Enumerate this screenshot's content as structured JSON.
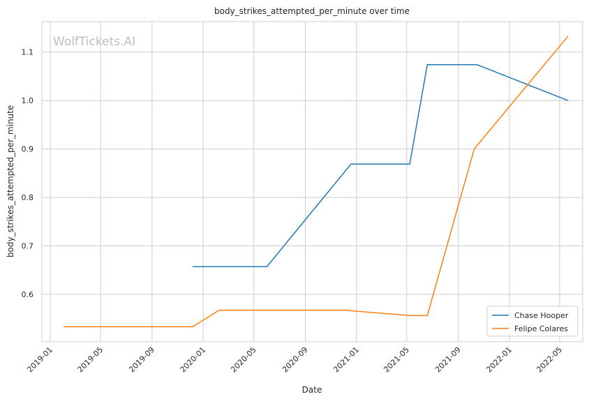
{
  "chart_data": {
    "type": "line",
    "title": "body_strikes_attempted_per_minute over time",
    "xlabel": "Date",
    "ylabel": "body_strikes_attempted_per_minute",
    "watermark": "WolfTickets.AI",
    "x_ticks": [
      "2019-01",
      "2019-05",
      "2019-09",
      "2020-01",
      "2020-05",
      "2020-09",
      "2021-01",
      "2021-05",
      "2021-09",
      "2022-01",
      "2022-05"
    ],
    "y_ticks": [
      "0.6",
      "0.7",
      "0.8",
      "0.9",
      "1.0",
      "1.1"
    ],
    "xlim": [
      "2018-12-12",
      "2022-06-25"
    ],
    "ylim": [
      0.502,
      1.163
    ],
    "grid": true,
    "legend_position": "bottom-right",
    "series": [
      {
        "name": "Chase Hooper",
        "color": "#1f77b4",
        "points": [
          {
            "x": "2019-12-07",
            "y": 0.657
          },
          {
            "x": "2020-06-01",
            "y": 0.657
          },
          {
            "x": "2020-12-19",
            "y": 0.869
          },
          {
            "x": "2021-05-08",
            "y": 0.869
          },
          {
            "x": "2021-06-19",
            "y": 1.074
          },
          {
            "x": "2021-10-16",
            "y": 1.074
          },
          {
            "x": "2022-05-21",
            "y": 1.0
          }
        ]
      },
      {
        "name": "Felipe Colares",
        "color": "#ff7f0e",
        "points": [
          {
            "x": "2019-02-02",
            "y": 0.533
          },
          {
            "x": "2019-12-07",
            "y": 0.533
          },
          {
            "x": "2020-02-08",
            "y": 0.567
          },
          {
            "x": "2020-12-05",
            "y": 0.567
          },
          {
            "x": "2021-05-08",
            "y": 0.556
          },
          {
            "x": "2021-06-19",
            "y": 0.556
          },
          {
            "x": "2021-10-09",
            "y": 0.9
          },
          {
            "x": "2022-05-21",
            "y": 1.133
          }
        ]
      }
    ]
  }
}
